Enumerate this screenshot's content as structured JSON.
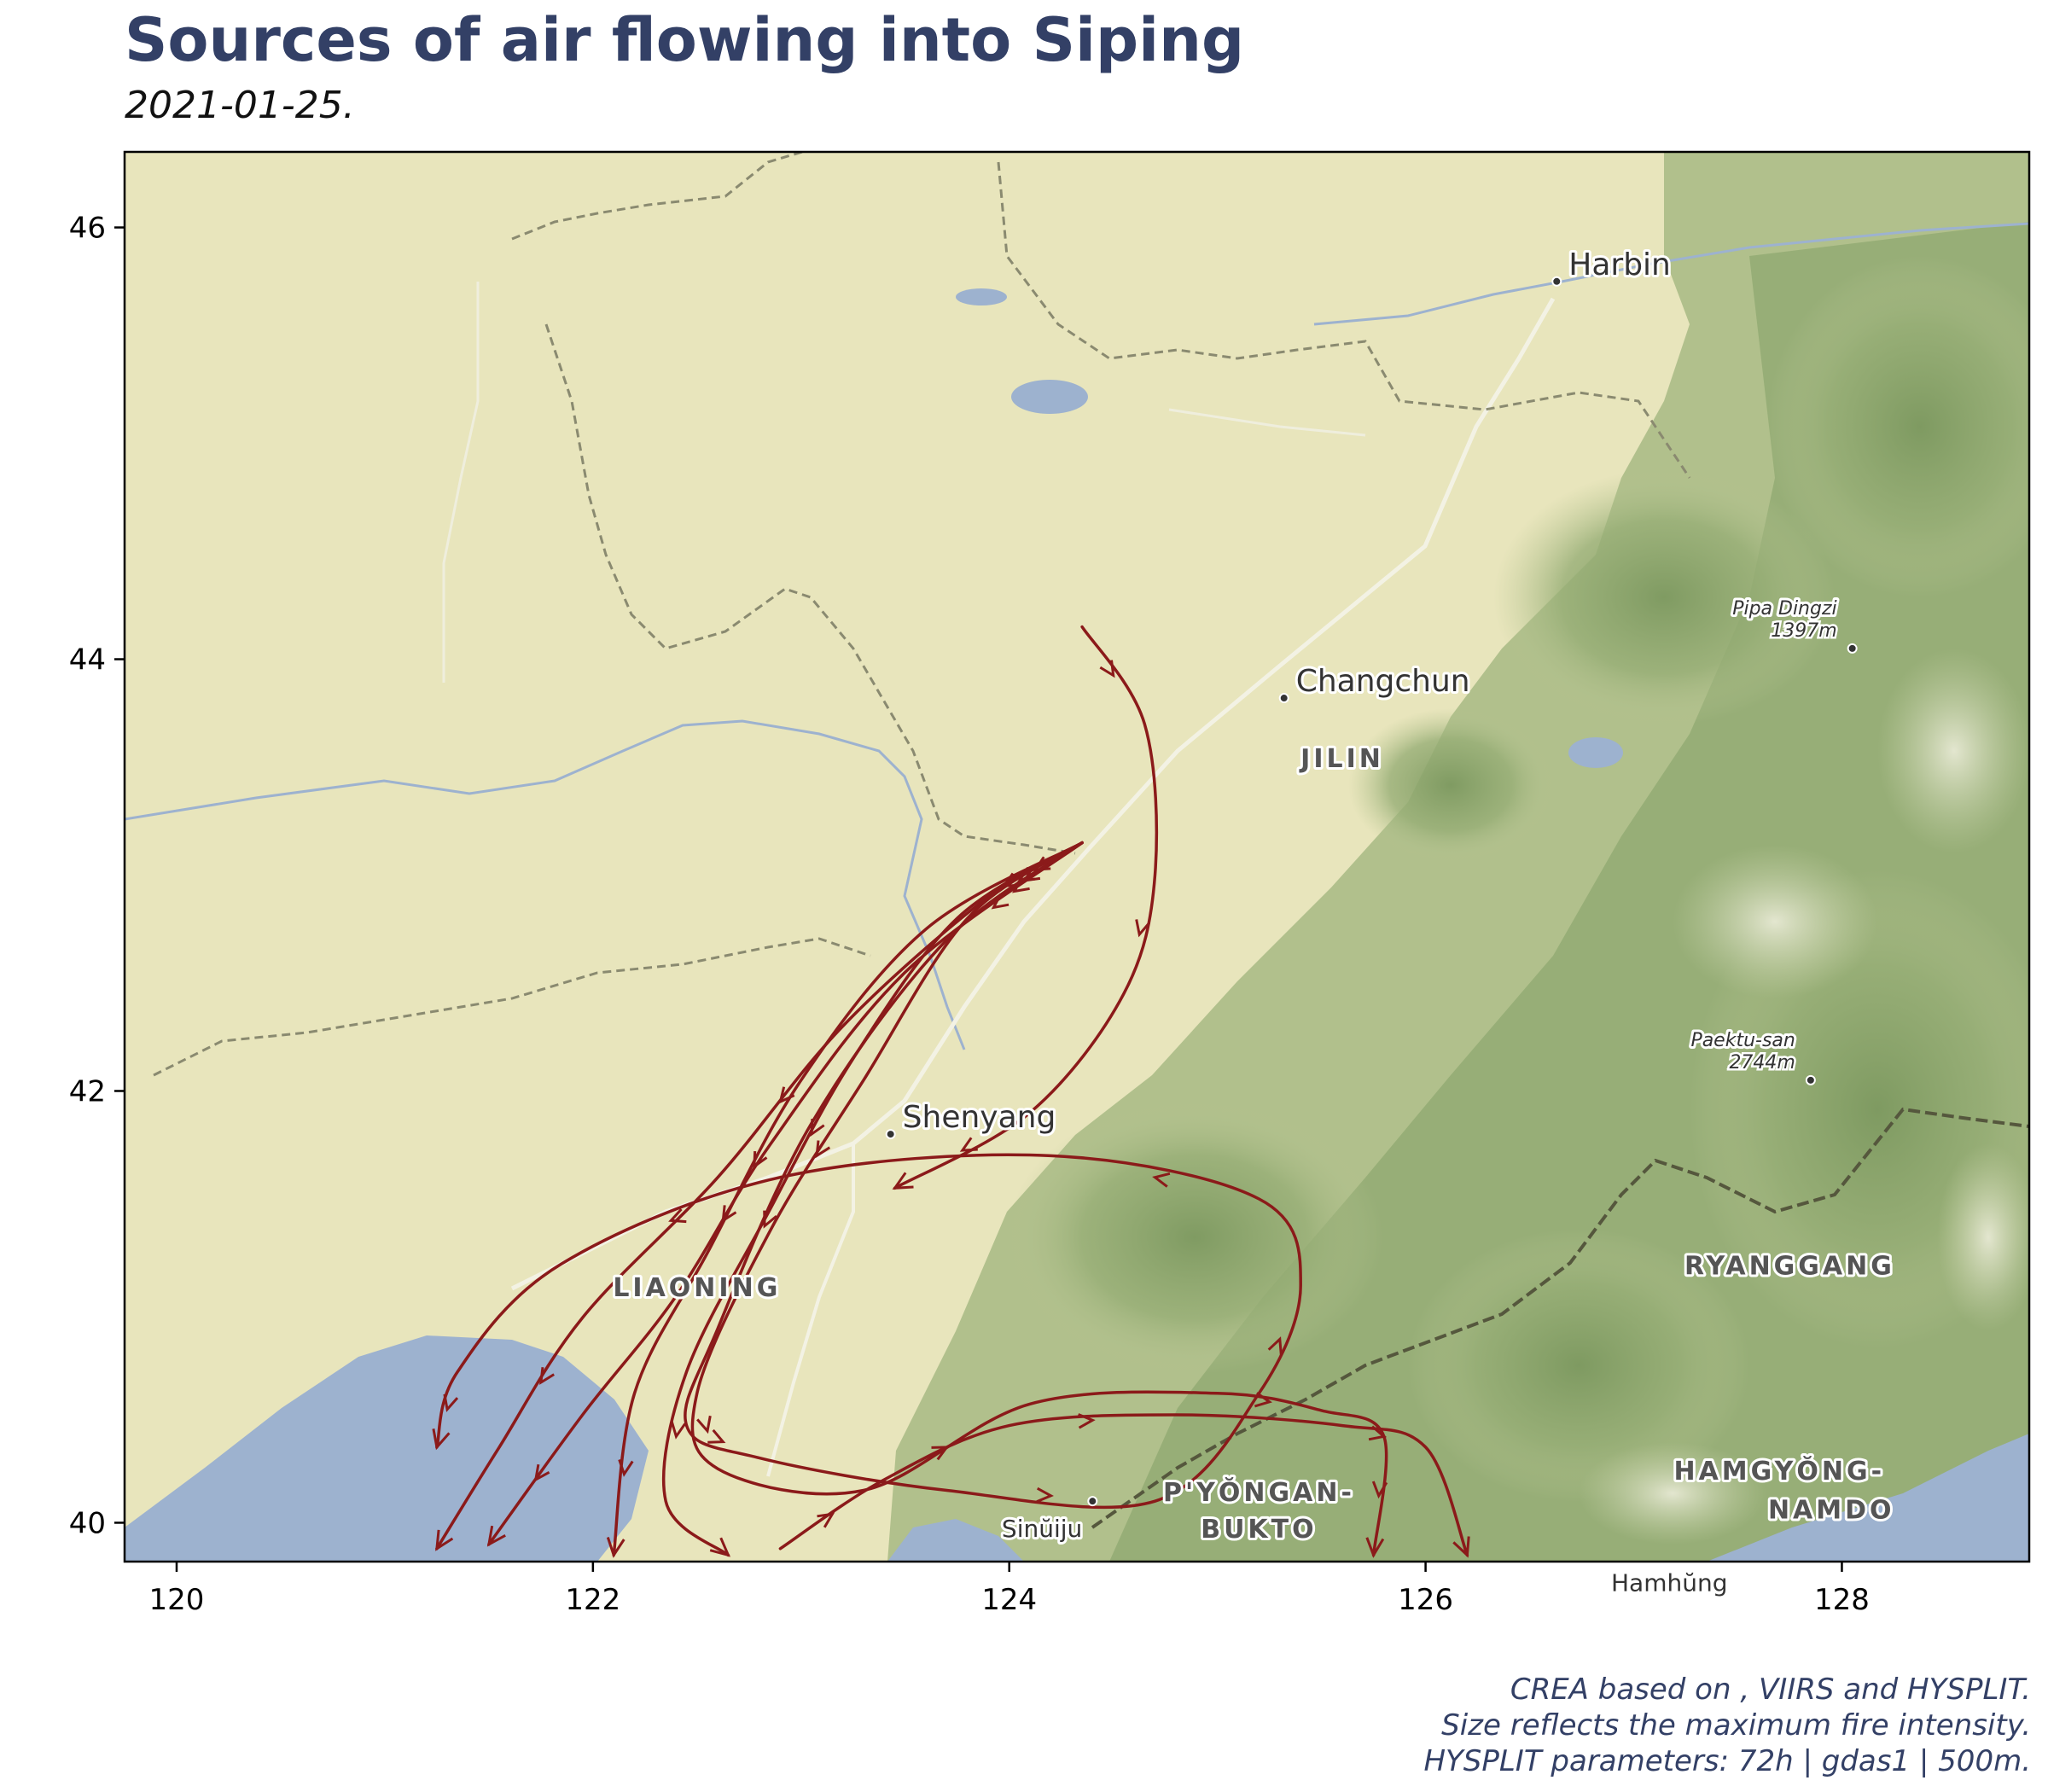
{
  "title": "Sources of air flowing into Siping",
  "subtitle": "2021-01-25.",
  "captions": [
    "CREA based on , VIIRS and HYSPLIT.",
    "Size reflects the maximum fire intensity.",
    "HYSPLIT parameters: 72h | gdas1 | 500m."
  ],
  "colors": {
    "trajectory": "#8b1a1a",
    "water": "#9db2cf",
    "plain": "#e8e5bc",
    "mountain": "#8fa870",
    "title": "#334066"
  },
  "chart_data": {
    "type": "map",
    "xlim": [
      119.75,
      128.9
    ],
    "ylim": [
      39.82,
      46.35
    ],
    "xticks": [
      120,
      122,
      124,
      126,
      128
    ],
    "yticks": [
      40,
      42,
      44,
      46
    ],
    "tick_labels_x": [
      "120",
      "122",
      "124",
      "126",
      "128"
    ],
    "tick_labels_y": [
      "40",
      "42",
      "44",
      "46"
    ],
    "places": [
      {
        "name": "Harbin",
        "lon": 126.63,
        "lat": 45.75,
        "dot": true,
        "style": "city"
      },
      {
        "name": "Changchun",
        "lon": 125.32,
        "lat": 43.82,
        "dot": true,
        "style": "city"
      },
      {
        "name": "Shenyang",
        "lon": 123.43,
        "lat": 41.8,
        "dot": true,
        "style": "city"
      },
      {
        "name": "Sinŭiju",
        "lon": 124.4,
        "lat": 40.1,
        "dot": true,
        "style": "small"
      },
      {
        "name": "JILIN",
        "lon": 125.6,
        "lat": 43.5,
        "dot": false,
        "style": "province"
      },
      {
        "name": "LIAONING",
        "lon": 122.5,
        "lat": 41.05,
        "dot": false,
        "style": "province"
      },
      {
        "name": "RYANGGANG",
        "lon": 127.75,
        "lat": 41.15,
        "dot": false,
        "style": "province"
      },
      {
        "name": "P'YŎNGAN-",
        "lon": 125.2,
        "lat": 40.1,
        "dot": false,
        "style": "province"
      },
      {
        "name": "BUKTO",
        "lon": 125.2,
        "lat": 39.93,
        "dot": false,
        "style": "province"
      },
      {
        "name": "HAMGYŎNG-",
        "lon": 127.7,
        "lat": 40.2,
        "dot": false,
        "style": "province"
      },
      {
        "name": "NAMDO",
        "lon": 127.95,
        "lat": 40.02,
        "dot": false,
        "style": "province"
      },
      {
        "name": "Hamhŭng",
        "lon": 127.5,
        "lat": 39.85,
        "dot": false,
        "style": "small"
      },
      {
        "name": "Pipa Dingzi",
        "lon": 128.05,
        "lat": 44.05,
        "dot": true,
        "style": "peak",
        "elev": "1397m"
      },
      {
        "name": "Paektu-san",
        "lon": 127.85,
        "lat": 42.05,
        "dot": true,
        "style": "peak",
        "elev": "2744m"
      }
    ],
    "trajectories": [
      {
        "points": [
          [
            124.35,
            43.15
          ],
          [
            123.9,
            42.9
          ],
          [
            123.2,
            42.3
          ],
          [
            122.6,
            41.6
          ],
          [
            121.95,
            40.95
          ],
          [
            121.55,
            40.35
          ],
          [
            121.25,
            39.88
          ]
        ]
      },
      {
        "points": [
          [
            124.35,
            43.15
          ],
          [
            123.5,
            42.55
          ],
          [
            122.85,
            41.75
          ],
          [
            122.4,
            41.05
          ],
          [
            121.95,
            40.5
          ],
          [
            121.5,
            39.9
          ]
        ]
      },
      {
        "points": [
          [
            124.35,
            43.15
          ],
          [
            123.6,
            42.75
          ],
          [
            123.0,
            42.05
          ],
          [
            122.55,
            41.25
          ],
          [
            122.2,
            40.6
          ],
          [
            122.1,
            39.85
          ]
        ]
      },
      {
        "points": [
          [
            124.35,
            43.15
          ],
          [
            123.75,
            42.8
          ],
          [
            123.25,
            42.15
          ],
          [
            122.85,
            41.45
          ],
          [
            122.45,
            40.7
          ],
          [
            122.35,
            40.1
          ],
          [
            122.65,
            39.85
          ]
        ]
      },
      {
        "points": [
          [
            124.35,
            43.15
          ],
          [
            123.7,
            42.7
          ],
          [
            123.05,
            41.85
          ],
          [
            122.6,
            40.9
          ],
          [
            122.45,
            40.45
          ],
          [
            122.8,
            40.3
          ],
          [
            123.7,
            40.15
          ],
          [
            124.7,
            40.1
          ],
          [
            125.2,
            40.6
          ],
          [
            125.4,
            41.1
          ],
          [
            125.2,
            41.5
          ],
          [
            124.2,
            41.7
          ],
          [
            122.9,
            41.6
          ],
          [
            121.85,
            41.2
          ],
          [
            121.35,
            40.7
          ],
          [
            121.25,
            40.35
          ]
        ]
      },
      {
        "points": [
          [
            124.35,
            43.15
          ],
          [
            123.8,
            42.8
          ],
          [
            123.3,
            42.05
          ],
          [
            122.85,
            41.35
          ],
          [
            122.5,
            40.6
          ],
          [
            122.6,
            40.25
          ],
          [
            123.3,
            40.15
          ],
          [
            124.1,
            40.55
          ],
          [
            125.0,
            40.6
          ],
          [
            125.5,
            40.52
          ],
          [
            125.8,
            40.4
          ],
          [
            125.75,
            39.85
          ]
        ]
      },
      {
        "points": [
          [
            124.35,
            44.15
          ],
          [
            124.65,
            43.7
          ],
          [
            124.7,
            43.0
          ],
          [
            124.55,
            42.45
          ],
          [
            124.1,
            41.9
          ],
          [
            123.45,
            41.55
          ]
        ]
      },
      {
        "points": [
          [
            122.9,
            39.88
          ],
          [
            123.4,
            40.2
          ],
          [
            124.0,
            40.45
          ],
          [
            124.8,
            40.5
          ],
          [
            125.6,
            40.45
          ],
          [
            126.0,
            40.35
          ],
          [
            126.2,
            39.85
          ]
        ]
      }
    ]
  }
}
